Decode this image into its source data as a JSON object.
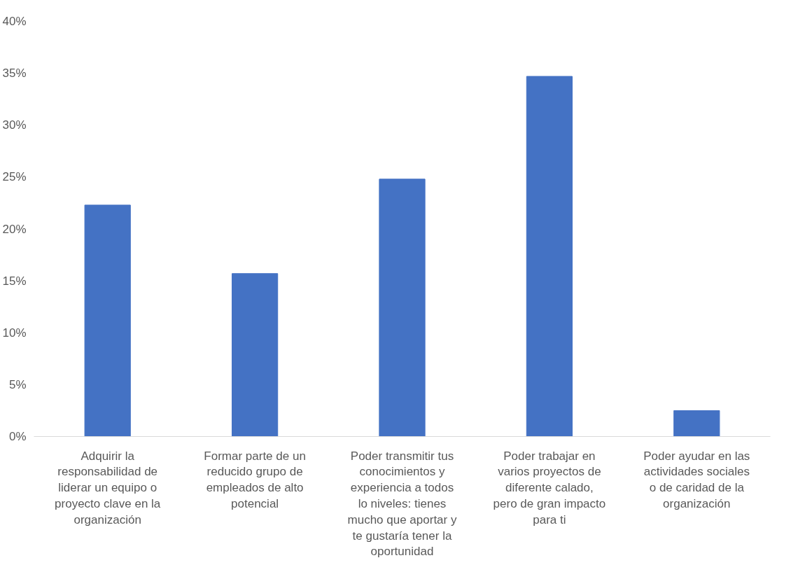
{
  "chart_data": {
    "type": "bar",
    "categories": [
      "Adquirir la responsabilidad de liderar un equipo o proyecto clave en la organización",
      "Formar parte de un reducido grupo de empleados de alto potencial",
      "Poder transmitir tus conocimientos y experiencia a todos lo niveles: tienes mucho que aportar y te gustaría tener la oportunidad",
      "Poder trabajar en varios proyectos de diferente calado, pero de gran impacto para ti",
      "Poder ayudar en las actividades sociales o de caridad de la organización"
    ],
    "values": [
      22.3,
      15.7,
      24.8,
      34.7,
      2.5
    ],
    "color": "#4472c4",
    "ylim": [
      0,
      40
    ],
    "yticks": [
      {
        "value": 0,
        "label": "0%"
      },
      {
        "value": 5,
        "label": "5%"
      },
      {
        "value": 10,
        "label": "10%"
      },
      {
        "value": 15,
        "label": "15%"
      },
      {
        "value": 20,
        "label": "20%"
      },
      {
        "value": 25,
        "label": "25%"
      },
      {
        "value": 30,
        "label": "30%"
      },
      {
        "value": 35,
        "label": "35%"
      },
      {
        "value": 40,
        "label": "40%"
      }
    ],
    "grid": false
  }
}
